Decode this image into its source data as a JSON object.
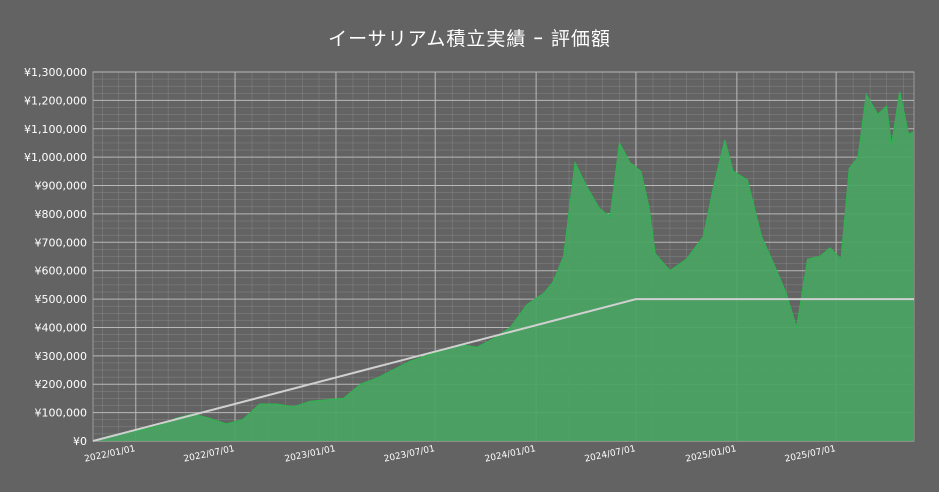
{
  "chart_data": {
    "type": "area",
    "title": "イーサリアム積立実績 ｰ 評価額",
    "xlabel": "",
    "ylabel": "",
    "x_range": [
      "2021-10-15",
      "2025-11-20"
    ],
    "ylim": [
      0,
      1300000
    ],
    "grid": true,
    "legend": "none",
    "colors": {
      "background": "#636363",
      "area_fill": "#49a462",
      "area_line": "#2fb350",
      "invested_line": "#d0d0d0",
      "grid": "#9a9a9a",
      "text": "#ffffff"
    },
    "x_tick_labels": [
      "2022/01/01",
      "2022/07/01",
      "2023/01/01",
      "2023/07/01",
      "2024/01/01",
      "2024/07/01",
      "2025/01/01",
      "2025/07/01"
    ],
    "x_tick_dates": [
      "2022-01-01",
      "2022-07-01",
      "2023-01-01",
      "2023-07-01",
      "2024-01-01",
      "2024-07-01",
      "2025-01-01",
      "2025-07-01"
    ],
    "y_tick_labels": [
      "¥0",
      "¥100,000",
      "¥200,000",
      "¥300,000",
      "¥400,000",
      "¥500,000",
      "¥600,000",
      "¥700,000",
      "¥800,000",
      "¥900,000",
      "¥1,000,000",
      "¥1,100,000",
      "¥1,200,000",
      "¥1,300,000"
    ],
    "y_tick_values": [
      0,
      100000,
      200000,
      300000,
      400000,
      500000,
      600000,
      700000,
      800000,
      900000,
      1000000,
      1100000,
      1200000,
      1300000
    ],
    "series": [
      {
        "values_kind": "valuation",
        "points": [
          [
            "2021-10-15",
            0
          ],
          [
            "2021-11-15",
            18000
          ],
          [
            "2021-12-15",
            30000
          ],
          [
            "2022-01-15",
            40000
          ],
          [
            "2022-02-15",
            55000
          ],
          [
            "2022-03-15",
            80000
          ],
          [
            "2022-04-15",
            95000
          ],
          [
            "2022-05-15",
            80000
          ],
          [
            "2022-06-15",
            60000
          ],
          [
            "2022-07-15",
            75000
          ],
          [
            "2022-08-15",
            130000
          ],
          [
            "2022-09-15",
            130000
          ],
          [
            "2022-10-15",
            120000
          ],
          [
            "2022-11-15",
            140000
          ],
          [
            "2022-12-15",
            145000
          ],
          [
            "2023-01-15",
            150000
          ],
          [
            "2023-02-15",
            200000
          ],
          [
            "2023-03-15",
            220000
          ],
          [
            "2023-04-15",
            250000
          ],
          [
            "2023-05-15",
            280000
          ],
          [
            "2023-06-15",
            300000
          ],
          [
            "2023-07-15",
            320000
          ],
          [
            "2023-08-15",
            340000
          ],
          [
            "2023-09-15",
            330000
          ],
          [
            "2023-10-15",
            360000
          ],
          [
            "2023-11-15",
            400000
          ],
          [
            "2023-12-15",
            480000
          ],
          [
            "2024-01-15",
            520000
          ],
          [
            "2024-02-01",
            560000
          ],
          [
            "2024-02-20",
            650000
          ],
          [
            "2024-03-12",
            980000
          ],
          [
            "2024-04-01",
            900000
          ],
          [
            "2024-04-25",
            820000
          ],
          [
            "2024-05-15",
            790000
          ],
          [
            "2024-06-01",
            1050000
          ],
          [
            "2024-06-20",
            980000
          ],
          [
            "2024-07-10",
            950000
          ],
          [
            "2024-07-25",
            820000
          ],
          [
            "2024-08-05",
            660000
          ],
          [
            "2024-09-01",
            600000
          ],
          [
            "2024-10-01",
            640000
          ],
          [
            "2024-11-01",
            720000
          ],
          [
            "2024-11-20",
            900000
          ],
          [
            "2024-12-10",
            1060000
          ],
          [
            "2024-12-25",
            950000
          ],
          [
            "2025-01-20",
            920000
          ],
          [
            "2025-02-15",
            720000
          ],
          [
            "2025-03-10",
            620000
          ],
          [
            "2025-04-01",
            520000
          ],
          [
            "2025-04-20",
            400000
          ],
          [
            "2025-05-10",
            640000
          ],
          [
            "2025-06-01",
            650000
          ],
          [
            "2025-06-20",
            680000
          ],
          [
            "2025-07-10",
            640000
          ],
          [
            "2025-07-25",
            960000
          ],
          [
            "2025-08-10",
            1000000
          ],
          [
            "2025-08-25",
            1220000
          ],
          [
            "2025-09-15",
            1150000
          ],
          [
            "2025-10-01",
            1180000
          ],
          [
            "2025-10-10",
            1040000
          ],
          [
            "2025-10-25",
            1230000
          ],
          [
            "2025-11-10",
            1080000
          ],
          [
            "2025-11-20",
            1090000
          ]
        ]
      },
      {
        "values_kind": "invested",
        "points": [
          [
            "2021-10-15",
            0
          ],
          [
            "2024-07-01",
            500000
          ],
          [
            "2025-11-20",
            500000
          ]
        ]
      }
    ]
  }
}
